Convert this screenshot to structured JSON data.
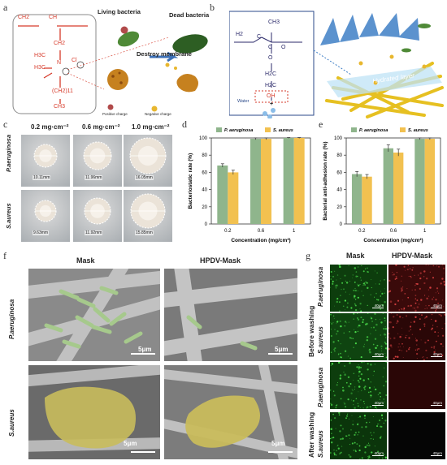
{
  "panel_labels": {
    "a": "a",
    "b": "b",
    "c": "c",
    "d": "d",
    "e": "e",
    "f": "f",
    "g": "g"
  },
  "panel_a": {
    "living": "Living bacteria",
    "dead": "Dead bacteria",
    "destroy": "Destroy membrane",
    "positive": "Positive charge",
    "negative": "Negative charge",
    "chem": {
      "ch2": "CH2",
      "ch": "CH",
      "ch2b": "CH2",
      "h3c1": "H3C",
      "h3c2": "H3C",
      "n": "N",
      "cl": "Cl",
      "chain": "(CH2)11",
      "ch3": "CH3"
    }
  },
  "panel_b": {
    "hydrated": "Hydrated layer",
    "water": "Water",
    "chem": {
      "h2": "H2",
      "c": "C",
      "ch3": "CH3",
      "c2": "C",
      "o": "O",
      "o2": "O",
      "h2c1": "H2C",
      "h2c2": "H2C",
      "oh": "OH",
      "plus": "+"
    }
  },
  "panel_c": {
    "cols": [
      "0.2 mg·cm⁻²",
      "0.6 mg·cm⁻²",
      "1.0 mg·cm⁻²"
    ],
    "rows": [
      "P.aeruginosa",
      "S.aureus"
    ],
    "zones": [
      [
        "10.11mm",
        "11.96mm",
        "16.05mm"
      ],
      [
        "9.63mm",
        "11.92mm",
        "15.85mm"
      ]
    ]
  },
  "panel_f": {
    "cols": [
      "Mask",
      "HPDV-Mask"
    ],
    "rows": [
      "P.aeruginosa",
      "S.aureus"
    ],
    "scalebar": "5μm"
  },
  "panel_g": {
    "cols": [
      "Mask",
      "HPDV-Mask"
    ],
    "groups": [
      "Before washing",
      "After washing"
    ],
    "rows": [
      "P.aeruginosa",
      "S.aureus",
      "P.aeruginosa",
      "S.aureus"
    ],
    "scalebar": "40μm"
  },
  "chart_data": [
    {
      "type": "bar",
      "panel": "d",
      "categories": [
        "0.2",
        "0.6",
        "1"
      ],
      "series": [
        {
          "name": "P. aeruginosa",
          "values": [
            68,
            99,
            100
          ],
          "errors": [
            2,
            1,
            0.5
          ],
          "color": "#8fb58c"
        },
        {
          "name": "S. aureus",
          "values": [
            60,
            99,
            100
          ],
          "errors": [
            2.5,
            1,
            0.5
          ],
          "color": "#f2c150"
        }
      ],
      "xlabel": "Concentration (mg/cm²)",
      "ylabel": "Bacteriostatic rate (%)",
      "ylim": [
        0,
        100
      ],
      "yticks": [
        0,
        20,
        40,
        60,
        80,
        100
      ],
      "legend": "top"
    },
    {
      "type": "bar",
      "panel": "e",
      "categories": [
        "0.2",
        "0.6",
        "1"
      ],
      "series": [
        {
          "name": "P. aeruginosa",
          "values": [
            58,
            88,
            99
          ],
          "errors": [
            3,
            4,
            1
          ],
          "color": "#8fb58c"
        },
        {
          "name": "S. aureus",
          "values": [
            55,
            83,
            99
          ],
          "errors": [
            2.5,
            4,
            1
          ],
          "color": "#f2c150"
        }
      ],
      "xlabel": "Concentration (mg/cm²)",
      "ylabel": "Bacterial anti-adhesion rate (%)",
      "ylim": [
        0,
        100
      ],
      "yticks": [
        0,
        20,
        40,
        60,
        80,
        100
      ],
      "legend": "top"
    }
  ]
}
